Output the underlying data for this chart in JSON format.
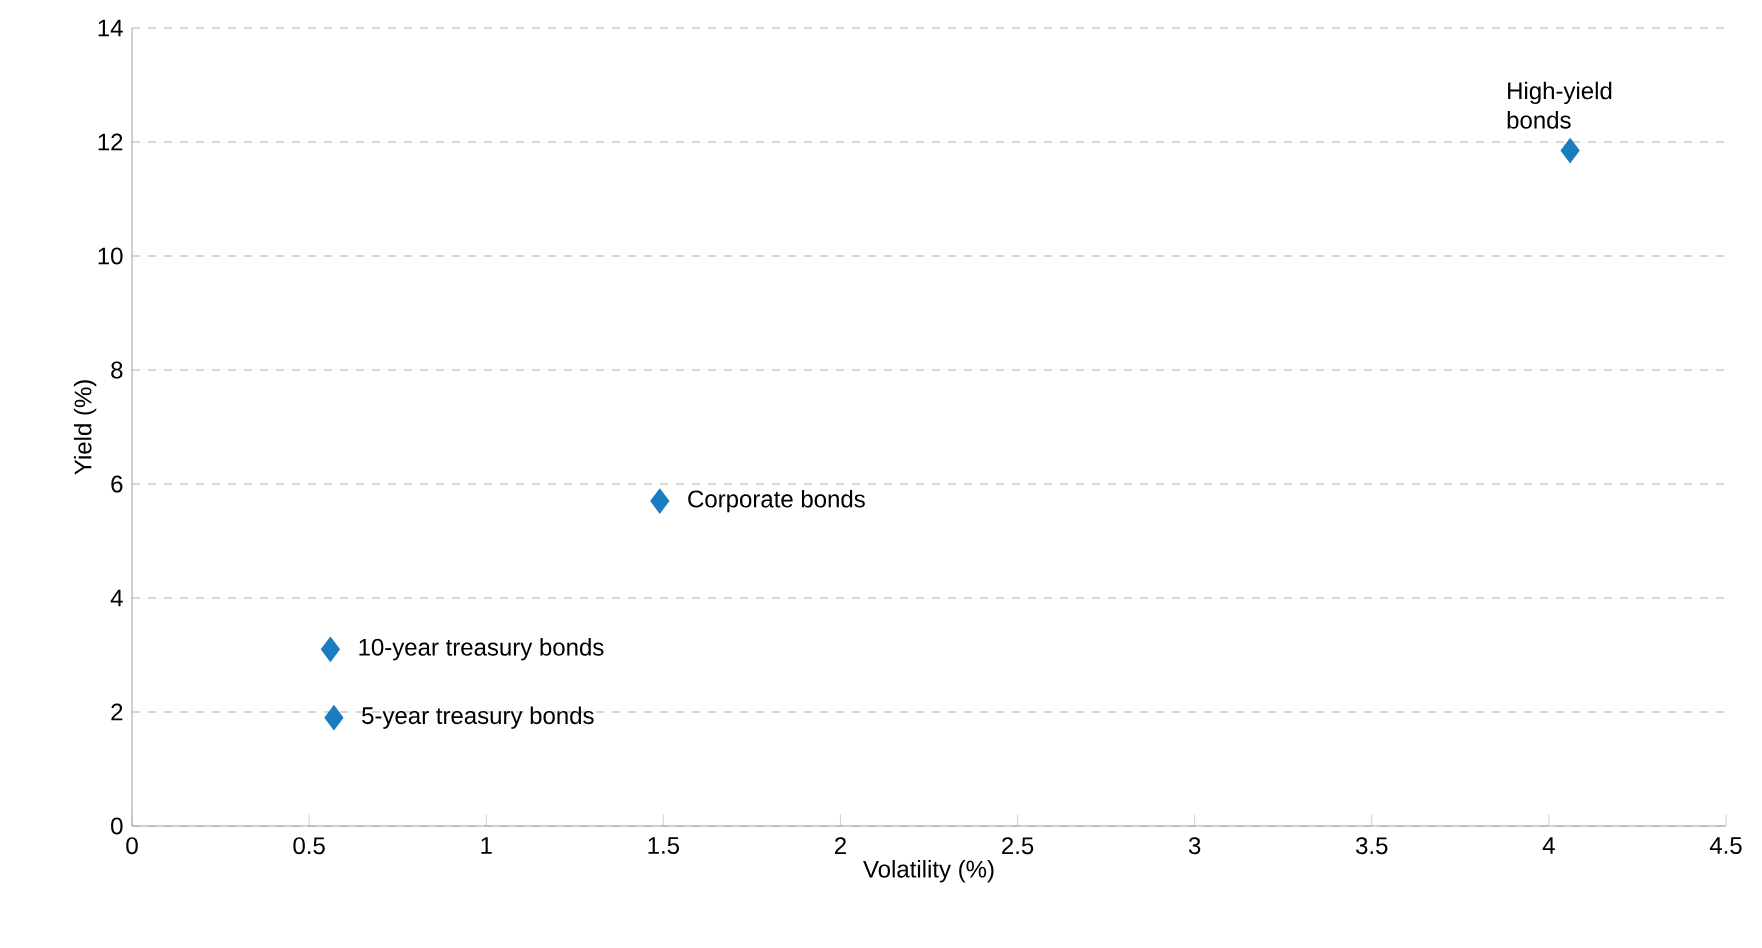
{
  "chart_data": {
    "type": "scatter",
    "xlabel": "Volatility (%)",
    "ylabel": "Yield (%)",
    "series": [
      {
        "color": "#1a7dc0",
        "x": [
          0.57,
          0.56,
          1.49,
          4.06
        ],
        "values": [
          1.9,
          3.1,
          5.7,
          11.85
        ]
      }
    ],
    "marker": "diamond",
    "grid": "y",
    "xlim": [
      0,
      4.5
    ],
    "xticks": [
      0,
      0.5,
      1,
      1.5,
      2,
      2.5,
      3,
      3.5,
      4,
      4.5
    ],
    "ylim": [
      0,
      14
    ],
    "yticks": [
      0,
      2,
      4,
      6,
      8,
      10,
      12,
      14
    ],
    "annotations": [
      {
        "text": "5-year treasury bonds",
        "x": 0.57,
        "y": 1.9
      },
      {
        "text": "10-year treasury bonds",
        "x": 0.56,
        "y": 3.1
      },
      {
        "text": "Corporate bonds",
        "x": 1.49,
        "y": 5.7
      },
      {
        "text": "High-yield bonds",
        "x": 4.06,
        "y": 11.85
      }
    ]
  }
}
